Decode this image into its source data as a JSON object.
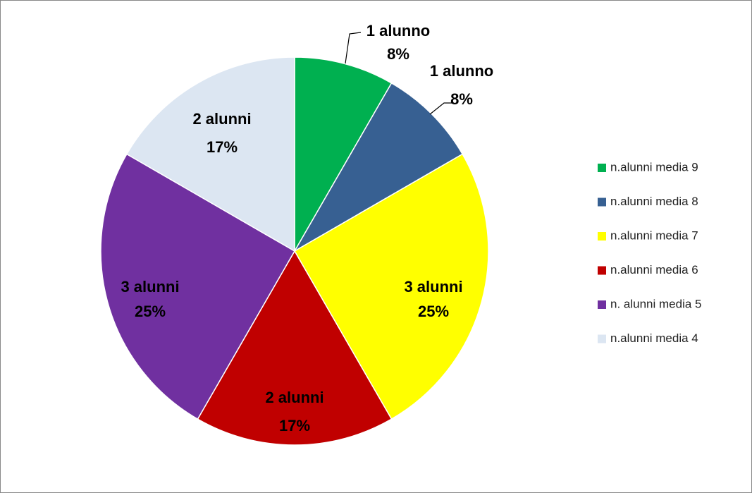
{
  "chart_data": {
    "type": "pie",
    "categories": [
      "n.alunni media 9",
      "n.alunni media 8",
      "n.alunni media 7",
      "n.alunni media 6",
      "n. alunni media 5",
      "n.alunni media 4"
    ],
    "values": [
      1,
      1,
      3,
      2,
      3,
      2
    ],
    "value_labels": [
      "1 alunno",
      "1 alunno",
      "3 alunni",
      "2 alunni",
      "3 alunni",
      "2 alunni"
    ],
    "percent_labels": [
      "8%",
      "8%",
      "25%",
      "17%",
      "25%",
      "17%"
    ],
    "colors": [
      "#00b050",
      "#376092",
      "#ffff00",
      "#c00000",
      "#7030a0",
      "#dce6f2"
    ],
    "legend": "right"
  }
}
